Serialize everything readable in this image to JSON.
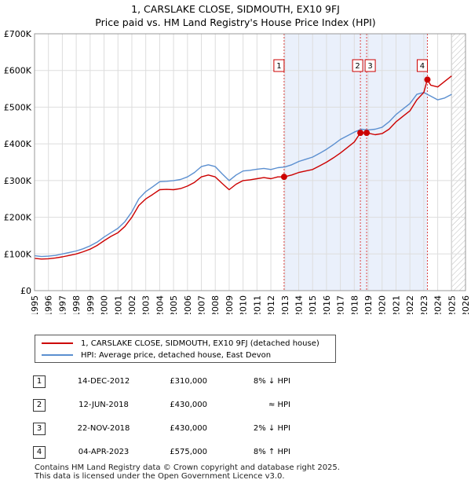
{
  "chart_data": {
    "type": "line",
    "title": "1, CARSLAKE CLOSE, SIDMOUTH, EX10 9FJ",
    "subtitle": "Price paid vs. HM Land Registry's House Price Index (HPI)",
    "xlim": [
      1995,
      2026
    ],
    "ylim": [
      0,
      700000
    ],
    "y_ticks": [
      0,
      100000,
      200000,
      300000,
      400000,
      500000,
      600000,
      700000
    ],
    "y_tick_labels": [
      "£0",
      "£100K",
      "£200K",
      "£300K",
      "£400K",
      "£500K",
      "£600K",
      "£700K"
    ],
    "x_ticks": [
      1995,
      1996,
      1997,
      1998,
      1999,
      2000,
      2001,
      2002,
      2003,
      2004,
      2005,
      2006,
      2007,
      2008,
      2009,
      2010,
      2011,
      2012,
      2013,
      2014,
      2015,
      2016,
      2017,
      2018,
      2019,
      2020,
      2021,
      2022,
      2023,
      2024,
      2025,
      2026
    ],
    "x_tick_labels": [
      "1995",
      "1996",
      "1997",
      "1998",
      "1999",
      "2000",
      "2001",
      "2002",
      "2003",
      "2004",
      "2005",
      "2006",
      "2007",
      "2008",
      "2009",
      "2010",
      "2011",
      "2012",
      "2013",
      "2014",
      "2015",
      "2016",
      "2017",
      "2018",
      "2019",
      "2020",
      "2021",
      "2022",
      "2023",
      "2024",
      "2025",
      "2026"
    ],
    "grid": true,
    "legend_position": "below",
    "series": [
      {
        "name": "1, CARSLAKE CLOSE, SIDMOUTH, EX10 9FJ (detached house)",
        "color": "#cc0000",
        "x": [
          1995.0,
          1995.5,
          1996.0,
          1996.5,
          1997.0,
          1997.5,
          1998.0,
          1998.5,
          1999.0,
          1999.5,
          2000.0,
          2000.5,
          2001.0,
          2001.5,
          2002.0,
          2002.5,
          2003.0,
          2003.5,
          2004.0,
          2004.5,
          2005.0,
          2005.5,
          2006.0,
          2006.5,
          2007.0,
          2007.5,
          2008.0,
          2008.5,
          2009.0,
          2009.5,
          2010.0,
          2010.5,
          2011.0,
          2011.5,
          2012.0,
          2012.5,
          2012.95,
          2013.5,
          2014.0,
          2014.5,
          2015.0,
          2015.5,
          2016.0,
          2016.5,
          2017.0,
          2017.5,
          2018.0,
          2018.44,
          2018.89,
          2019.5,
          2020.0,
          2020.5,
          2021.0,
          2021.5,
          2022.0,
          2022.5,
          2023.0,
          2023.25,
          2023.5,
          2024.0,
          2024.5,
          2025.0
        ],
        "values": [
          88000,
          86000,
          87000,
          89000,
          92000,
          96000,
          100000,
          106000,
          113000,
          123000,
          136000,
          148000,
          158000,
          175000,
          200000,
          232000,
          250000,
          262000,
          275000,
          276000,
          275000,
          278000,
          285000,
          295000,
          310000,
          315000,
          310000,
          292000,
          275000,
          290000,
          300000,
          302000,
          305000,
          308000,
          305000,
          310000,
          310000,
          315000,
          322000,
          326000,
          330000,
          340000,
          350000,
          362000,
          375000,
          390000,
          405000,
          430000,
          430000,
          425000,
          428000,
          440000,
          460000,
          475000,
          490000,
          520000,
          540000,
          575000,
          560000,
          555000,
          570000,
          585000
        ]
      },
      {
        "name": "HPI: Average price, detached house, East Devon",
        "color": "#5b8fd0",
        "x": [
          1995.0,
          1995.5,
          1996.0,
          1996.5,
          1997.0,
          1997.5,
          1998.0,
          1998.5,
          1999.0,
          1999.5,
          2000.0,
          2000.5,
          2001.0,
          2001.5,
          2002.0,
          2002.5,
          2003.0,
          2003.5,
          2004.0,
          2004.5,
          2005.0,
          2005.5,
          2006.0,
          2006.5,
          2007.0,
          2007.5,
          2008.0,
          2008.5,
          2009.0,
          2009.5,
          2010.0,
          2010.5,
          2011.0,
          2011.5,
          2012.0,
          2012.5,
          2013.0,
          2013.5,
          2014.0,
          2014.5,
          2015.0,
          2015.5,
          2016.0,
          2016.5,
          2017.0,
          2017.5,
          2018.0,
          2018.5,
          2019.0,
          2019.5,
          2020.0,
          2020.5,
          2021.0,
          2021.5,
          2022.0,
          2022.5,
          2023.0,
          2023.5,
          2024.0,
          2024.5,
          2025.0
        ],
        "values": [
          95000,
          93000,
          94000,
          96000,
          100000,
          104000,
          108000,
          114000,
          122000,
          132000,
          146000,
          158000,
          170000,
          188000,
          215000,
          250000,
          270000,
          283000,
          297000,
          298000,
          300000,
          303000,
          310000,
          322000,
          338000,
          343000,
          338000,
          318000,
          300000,
          315000,
          326000,
          328000,
          331000,
          333000,
          330000,
          335000,
          337000,
          343000,
          352000,
          358000,
          364000,
          374000,
          385000,
          398000,
          412000,
          422000,
          432000,
          440000,
          438000,
          440000,
          445000,
          460000,
          480000,
          495000,
          510000,
          535000,
          540000,
          530000,
          520000,
          525000,
          535000
        ]
      }
    ],
    "sale_markers": [
      {
        "label": "1",
        "x": 2012.95,
        "value": 310000
      },
      {
        "label": "2",
        "x": 2018.44,
        "value": 430000
      },
      {
        "label": "3",
        "x": 2018.89,
        "value": 430000
      },
      {
        "label": "4",
        "x": 2023.26,
        "value": 575000
      }
    ],
    "forecast_from": 2025.0
  },
  "legend": {
    "items": [
      {
        "label": "1, CARSLAKE CLOSE, SIDMOUTH, EX10 9FJ (detached house)",
        "color": "#cc0000"
      },
      {
        "label": "HPI: Average price, detached house, East Devon",
        "color": "#5b8fd0"
      }
    ]
  },
  "sales": [
    {
      "num": "1",
      "date": "14-DEC-2012",
      "price": "£310,000",
      "rel": "8% ↓ HPI"
    },
    {
      "num": "2",
      "date": "12-JUN-2018",
      "price": "£430,000",
      "rel": "≈ HPI"
    },
    {
      "num": "3",
      "date": "22-NOV-2018",
      "price": "£430,000",
      "rel": "2% ↓ HPI"
    },
    {
      "num": "4",
      "date": "04-APR-2023",
      "price": "£575,000",
      "rel": "8% ↑ HPI"
    }
  ],
  "footer": {
    "line1": "Contains HM Land Registry data © Crown copyright and database right 2025.",
    "line2": "This data is licensed under the Open Government Licence v3.0."
  }
}
